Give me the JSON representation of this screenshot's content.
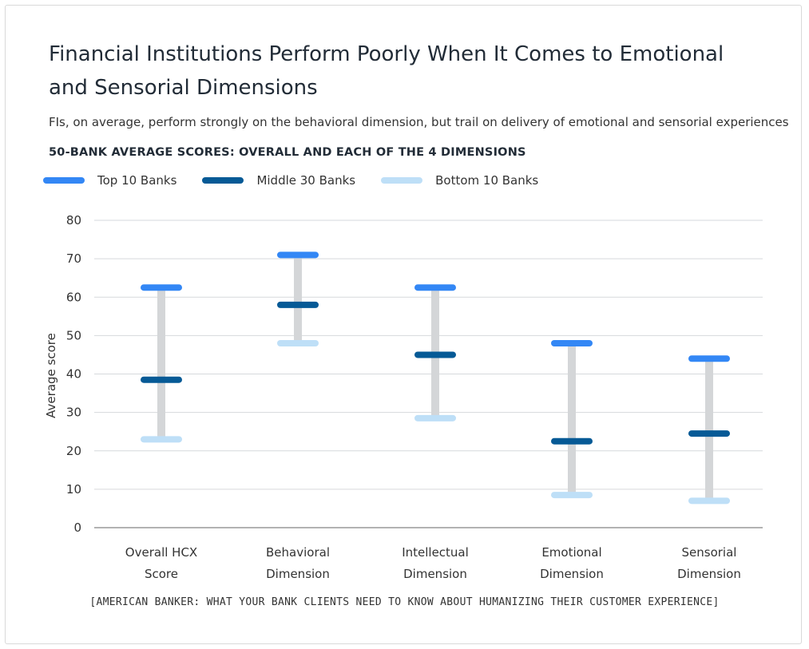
{
  "colors": {
    "top": "#3387f5",
    "middle": "#065a96",
    "bottom": "#bedff7",
    "range": "#d4d6d8",
    "grid": "#d6d9dc",
    "axis": "#999999"
  },
  "chart_data": {
    "type": "range",
    "title": "Financial Institutions Perform Poorly When It Comes to Emotional and Sensorial Dimensions",
    "subtitle": "FIs, on average, perform strongly on the behavioral dimension, but trail on delivery of emotional and sensorial experiences",
    "heading": "50-BANK AVERAGE SCORES: OVERALL AND EACH OF THE 4 DIMENSIONS",
    "ylabel": "Average score",
    "ylim": [
      0,
      80
    ],
    "yticks": [
      0,
      10,
      20,
      30,
      40,
      50,
      60,
      70,
      80
    ],
    "categories": [
      [
        "Overall HCX",
        "Score"
      ],
      [
        "Behavioral",
        "Dimension"
      ],
      [
        "Intellectual",
        "Dimension"
      ],
      [
        "Emotional",
        "Dimension"
      ],
      [
        "Sensorial",
        "Dimension"
      ]
    ],
    "series": [
      {
        "key": "top",
        "name": "Top 10 Banks",
        "values": [
          62.5,
          71,
          62.5,
          48,
          44
        ]
      },
      {
        "key": "middle",
        "name": "Middle 30 Banks",
        "values": [
          38.5,
          58,
          45,
          22.5,
          24.5
        ]
      },
      {
        "key": "bottom",
        "name": "Bottom 10 Banks",
        "values": [
          23,
          48,
          28.5,
          8.5,
          7
        ]
      }
    ],
    "source": "[AMERICAN BANKER: WHAT YOUR BANK CLIENTS NEED TO KNOW ABOUT HUMANIZING THEIR CUSTOMER EXPERIENCE]"
  }
}
